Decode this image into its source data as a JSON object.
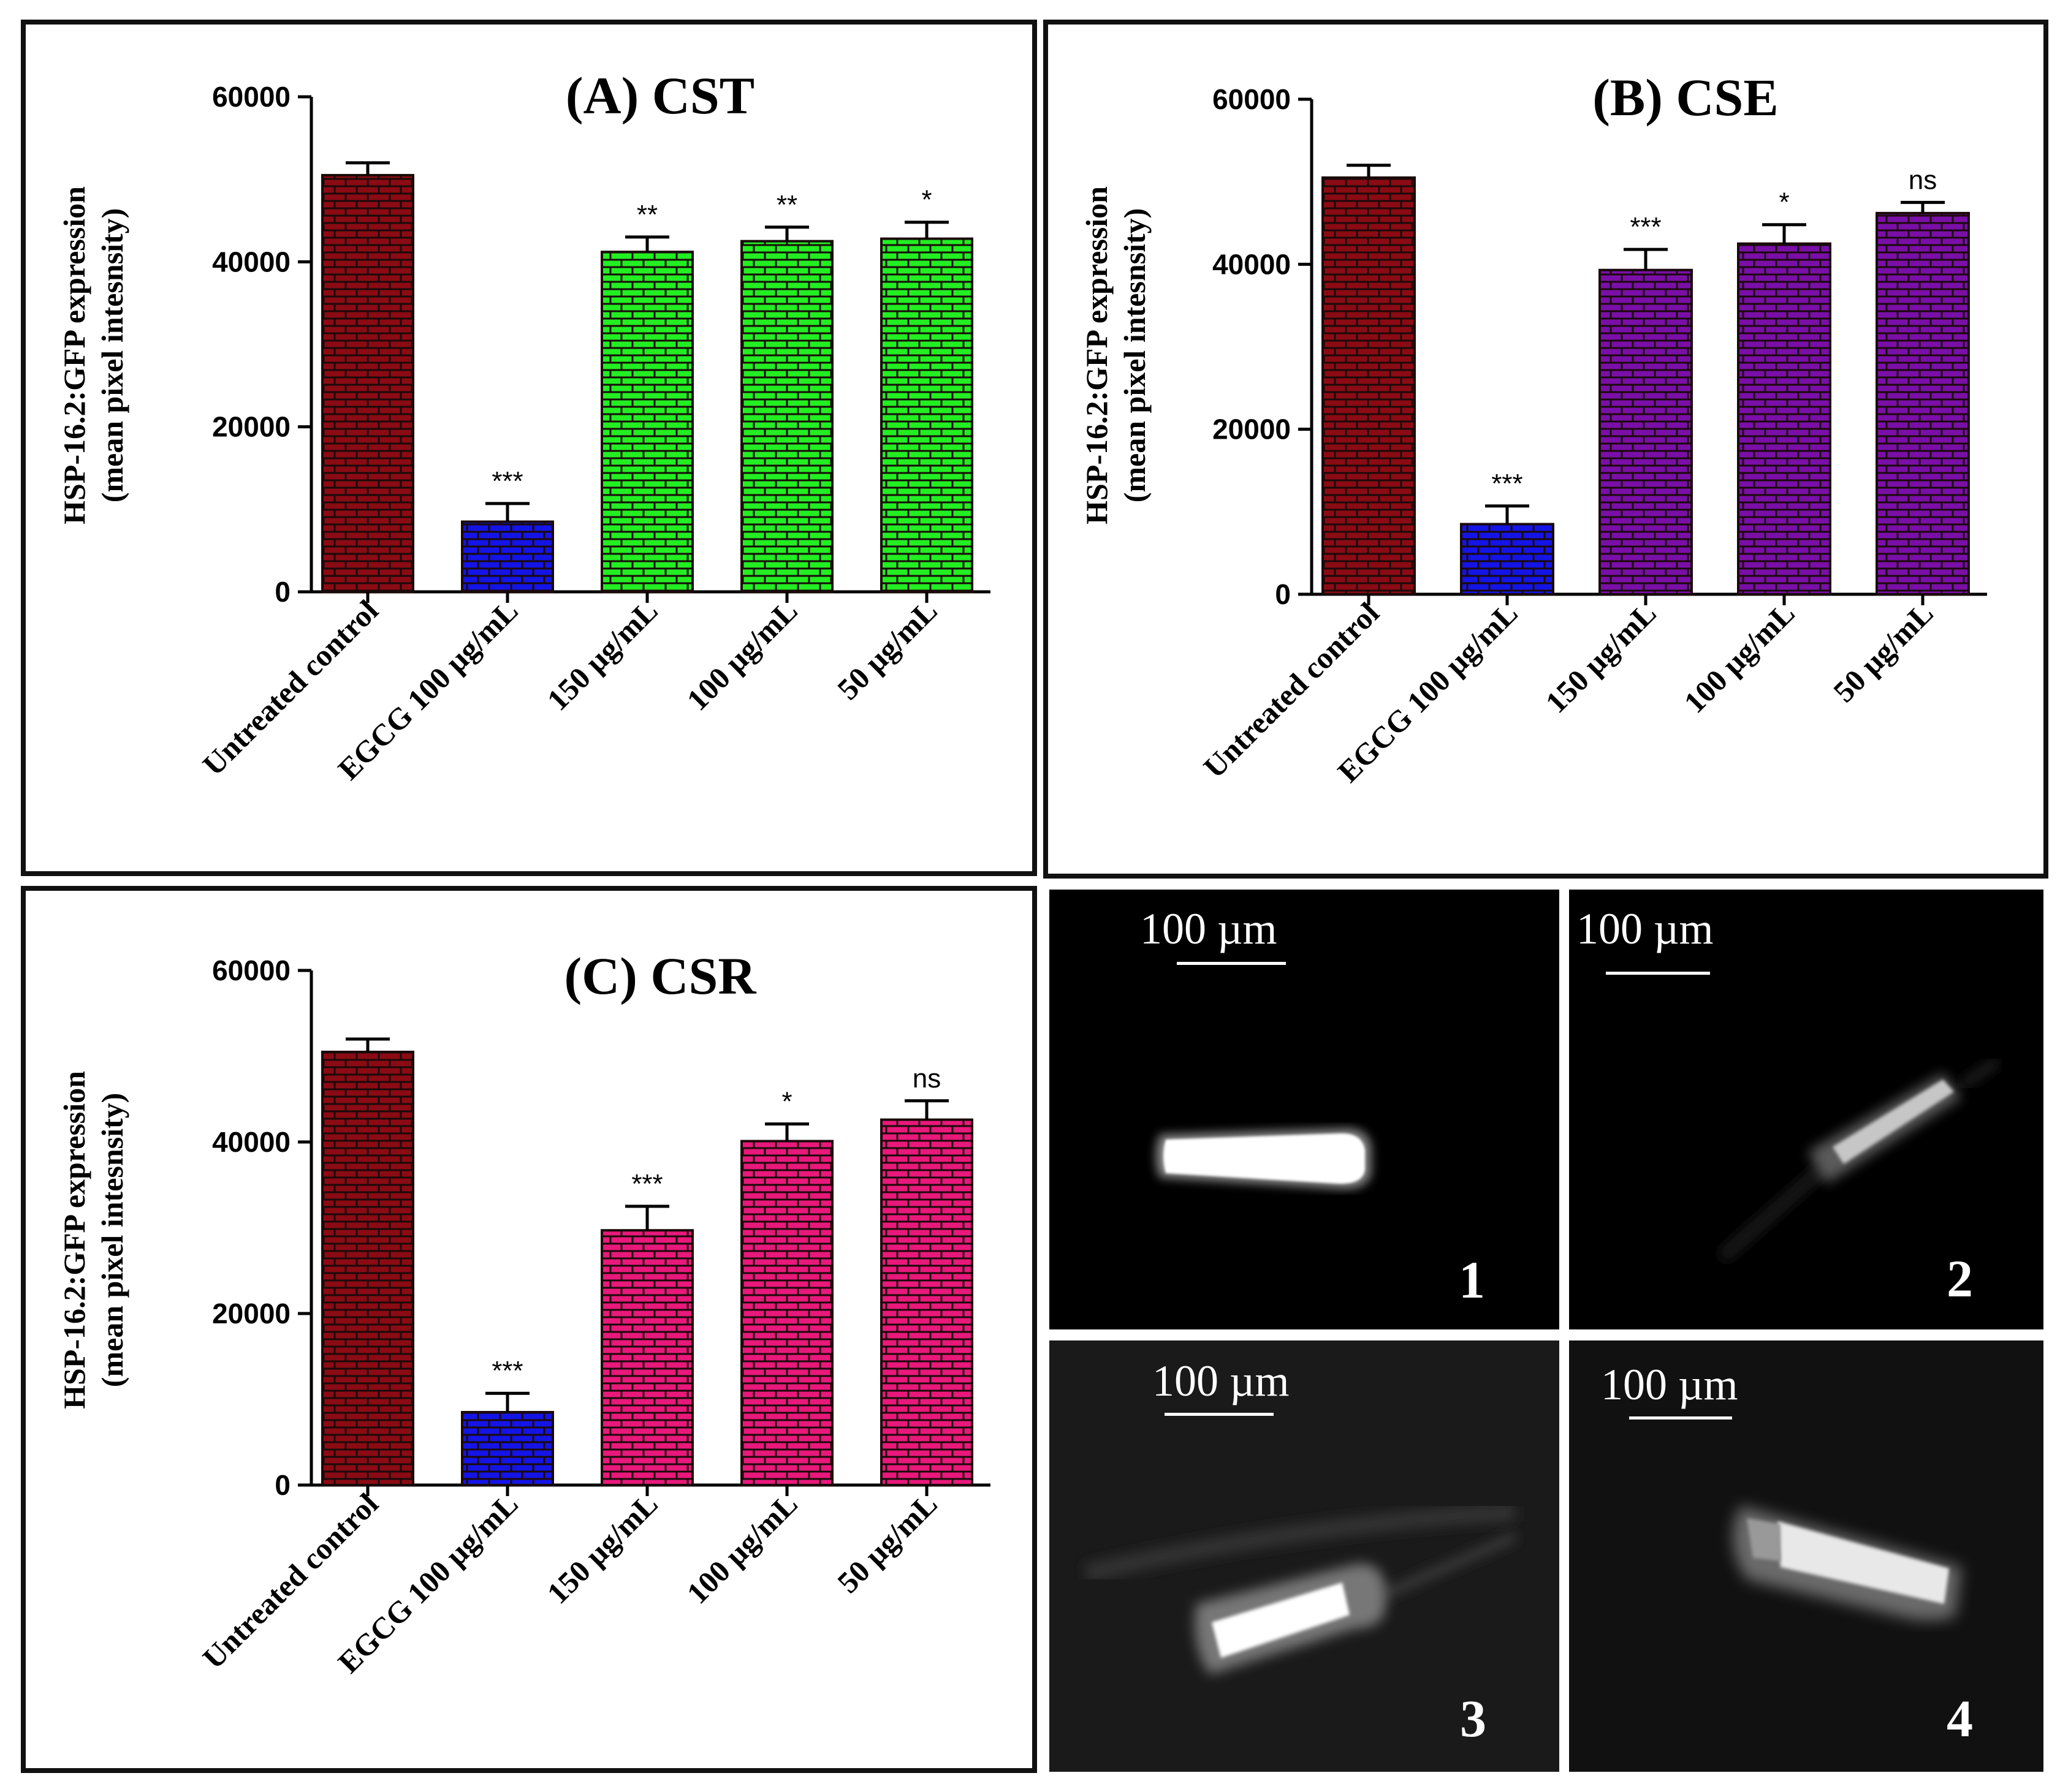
{
  "chart_data": [
    {
      "panel": "A",
      "type": "bar",
      "title": "(A) CST",
      "ylabel_line1": "HSP-16.2:GFP expression",
      "ylabel_line2": "(mean pixel intesnsity)",
      "ylim": [
        0,
        60000
      ],
      "yticks": [
        0,
        20000,
        40000,
        60000
      ],
      "categories": [
        "Untreated control",
        "EGCG 100 µg/mL",
        "150 µg/mL",
        "100 µg/mL",
        "50 µg/mL"
      ],
      "values": [
        50500,
        8500,
        41200,
        42500,
        42800
      ],
      "errors": [
        1500,
        2200,
        1800,
        1700,
        2000
      ],
      "significance": [
        "",
        "***",
        "**",
        "**",
        "*"
      ],
      "colors": [
        "#8b0b14",
        "#1414e6",
        "#22ee22",
        "#22ee22",
        "#22ee22"
      ]
    },
    {
      "panel": "B",
      "type": "bar",
      "title": "(B) CSE",
      "ylabel_line1": "HSP-16.2:GFP expression",
      "ylabel_line2": "(mean pixel intesnsity)",
      "ylim": [
        0,
        60000
      ],
      "yticks": [
        0,
        20000,
        40000,
        60000
      ],
      "categories": [
        "Untreated control",
        "EGCG 100 µg/mL",
        "150 µg/mL",
        "100 µg/mL",
        "50 µg/mL"
      ],
      "values": [
        50500,
        8500,
        39300,
        42500,
        46200
      ],
      "errors": [
        1500,
        2200,
        2500,
        2300,
        1300
      ],
      "significance": [
        "",
        "***",
        "***",
        "*",
        "ns"
      ],
      "colors": [
        "#8b0b14",
        "#1414e6",
        "#7a0fa8",
        "#7a0fa8",
        "#7a0fa8"
      ]
    },
    {
      "panel": "C",
      "type": "bar",
      "title": "(C) CSR",
      "ylabel_line1": "HSP-16.2:GFP expression",
      "ylabel_line2": "(mean pixel intesnsity)",
      "ylim": [
        0,
        60000
      ],
      "yticks": [
        0,
        20000,
        40000,
        60000
      ],
      "categories": [
        "Untreated control",
        "EGCG 100 µg/mL",
        "150 µg/mL",
        "100 µg/mL",
        "50 µg/mL"
      ],
      "values": [
        50500,
        8500,
        29700,
        40100,
        42600
      ],
      "errors": [
        1500,
        2200,
        2800,
        2000,
        2200
      ],
      "significance": [
        "",
        "***",
        "***",
        "*",
        "ns"
      ],
      "colors": [
        "#8b0b14",
        "#1414e6",
        "#e8197a",
        "#e8197a",
        "#e8197a"
      ]
    }
  ],
  "micrographs": [
    {
      "number": "1",
      "scale": "100 µm"
    },
    {
      "number": "2",
      "scale": "100 µm"
    },
    {
      "number": "3",
      "scale": "100 µm"
    },
    {
      "number": "4",
      "scale": "100 µm"
    }
  ]
}
